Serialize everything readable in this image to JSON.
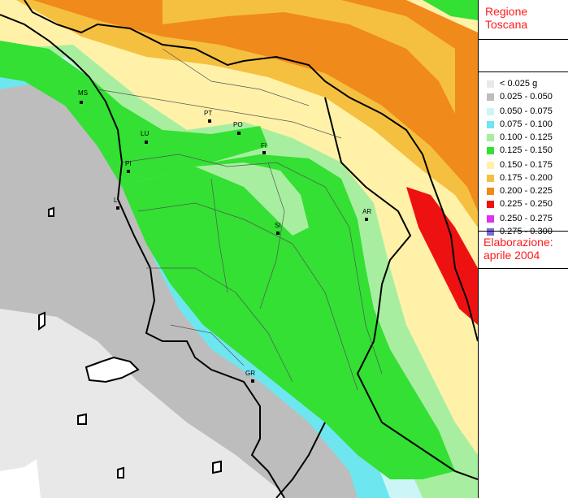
{
  "panel": {
    "title_line1": "Regione",
    "title_line2": "Toscana",
    "elab_line1": "Elaborazione:",
    "elab_line2": "aprile 2004"
  },
  "legend": [
    {
      "label": "< 0.025 g",
      "color": "#e8e8e8"
    },
    {
      "label": "0.025 - 0.050",
      "color": "#bdbdbd"
    },
    {
      "label": "0.050 - 0.075",
      "color": "#ccf5f8"
    },
    {
      "label": "0.075 - 0.100",
      "color": "#6ee6f0"
    },
    {
      "label": "0.100 - 0.125",
      "color": "#a8eea0"
    },
    {
      "label": "0.125 - 0.150",
      "color": "#33e033"
    },
    {
      "label": "0.150 - 0.175",
      "color": "#fff2a8"
    },
    {
      "label": "0.175 - 0.200",
      "color": "#f5c040"
    },
    {
      "label": "0.200 - 0.225",
      "color": "#f08a1a"
    },
    {
      "label": "0.225 - 0.250",
      "color": "#ee1111"
    },
    {
      "label": "0.250 - 0.275",
      "color": "#dd33ee"
    },
    {
      "label": "0.275 - 0.300",
      "color": "#7a6ccf"
    }
  ],
  "cities": [
    {
      "label": "MS"
    },
    {
      "label": "LU"
    },
    {
      "label": "PT"
    },
    {
      "label": "PO"
    },
    {
      "label": "FI"
    },
    {
      "label": "PI"
    },
    {
      "label": "LI"
    },
    {
      "label": "AR"
    },
    {
      "label": "SI"
    },
    {
      "label": "GR"
    }
  ]
}
